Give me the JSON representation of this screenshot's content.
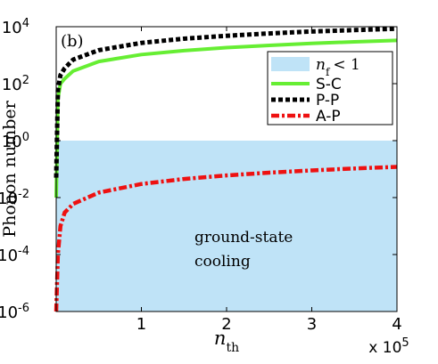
{
  "chart_data": {
    "type": "line",
    "panel_label": "(b)",
    "xlabel": "n_th",
    "ylabel": "Phonon number",
    "x_multiplier": "x 10^5",
    "xlim": [
      0,
      400000
    ],
    "ylim": [
      1e-06,
      10000
    ],
    "y_scale": "log",
    "x_ticks": [
      100000,
      200000,
      300000,
      400000
    ],
    "x_tick_labels": [
      "1",
      "2",
      "3",
      "4"
    ],
    "y_ticks": [
      1e-06,
      0.0001,
      0.01,
      1,
      100,
      10000
    ],
    "y_tick_labels": [
      "10^-6",
      "10^-4",
      "10^-2",
      "10^0",
      "10^2",
      "10^4"
    ],
    "grid": false,
    "legend_position": "top-right",
    "shaded_region": {
      "label": "n_f < 1",
      "y_range": [
        1e-06,
        1
      ],
      "color": "#bfe3f7"
    },
    "series": [
      {
        "name": "S-C",
        "color": "#66ee33",
        "style": "solid",
        "x": [
          0,
          2000,
          5000,
          10000,
          20000,
          50000,
          100000,
          150000,
          200000,
          250000,
          300000,
          350000,
          400000
        ],
        "y": [
          0.01,
          30,
          100,
          150,
          280,
          600,
          1050,
          1450,
          1850,
          2200,
          2600,
          2950,
          3300
        ]
      },
      {
        "name": "P-P",
        "color": "#000000",
        "style": "dotted",
        "x": [
          0,
          2000,
          5000,
          10000,
          20000,
          50000,
          100000,
          150000,
          200000,
          250000,
          300000,
          350000,
          400000
        ],
        "y": [
          0.05,
          60,
          200,
          350,
          700,
          1500,
          2700,
          3800,
          4800,
          5800,
          6800,
          7600,
          8500
        ]
      },
      {
        "name": "A-P",
        "color": "#ee1111",
        "style": "dash-dot",
        "x": [
          0,
          2000,
          5000,
          10000,
          20000,
          50000,
          100000,
          150000,
          200000,
          250000,
          300000,
          350000,
          400000
        ],
        "y": [
          1e-06,
          0.0001,
          0.001,
          0.003,
          0.006,
          0.015,
          0.03,
          0.045,
          0.06,
          0.075,
          0.09,
          0.105,
          0.12
        ]
      }
    ],
    "annotation": {
      "line1": "ground-state",
      "line2": "cooling"
    }
  }
}
